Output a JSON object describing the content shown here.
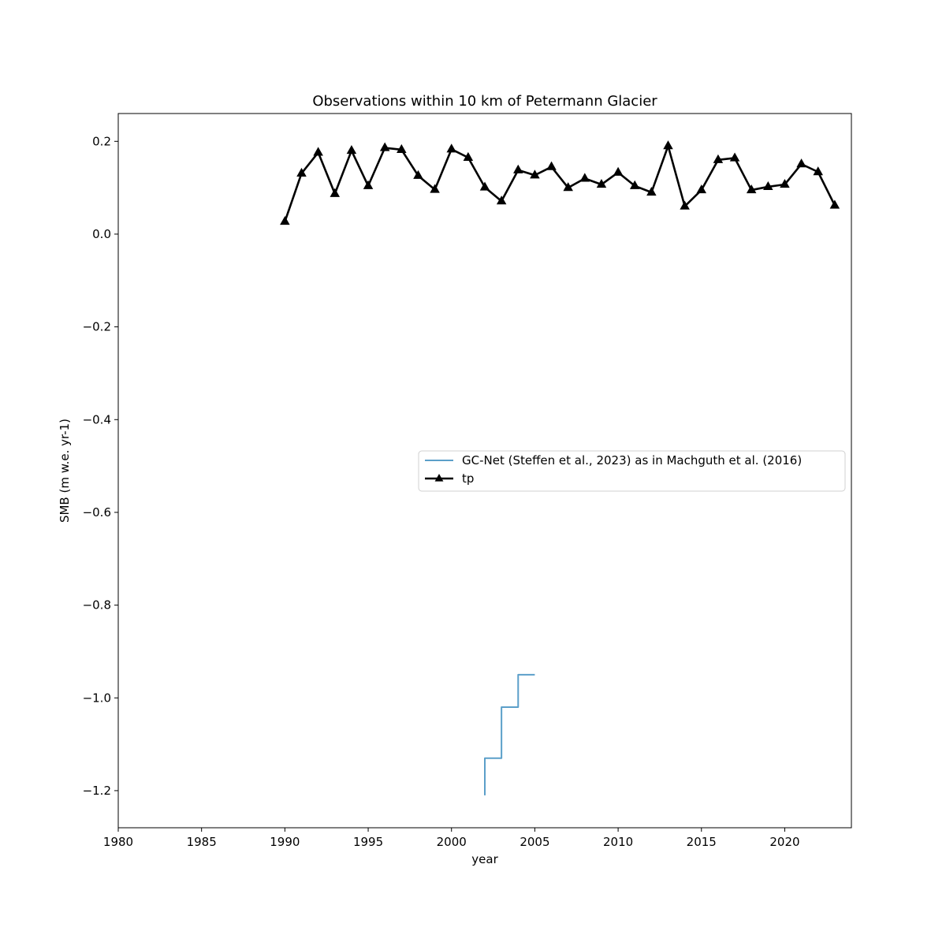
{
  "chart_data": {
    "type": "line",
    "title": "Observations within 10 km of Petermann Glacier",
    "xlabel": "year",
    "ylabel": "SMB (m w.e. yr-1)",
    "xlim": [
      1980,
      2024
    ],
    "ylim": [
      -1.28,
      0.26
    ],
    "xticks": [
      1980,
      1985,
      1990,
      1995,
      2000,
      2005,
      2010,
      2015,
      2020
    ],
    "yticks": [
      0.2,
      0.0,
      -0.2,
      -0.4,
      -0.6,
      -0.8,
      -1.0,
      -1.2
    ],
    "ytick_labels": [
      "0.2",
      "0.0",
      "−0.2",
      "−0.4",
      "−0.6",
      "−0.8",
      "−1.0",
      "−1.2"
    ],
    "grid": false,
    "legend_position": "center-right",
    "series": [
      {
        "name": "GC-Net (Steffen et al., 2023) as in Machguth et al. (2016)",
        "style": "step",
        "color": "#5b9fc9",
        "marker": "none",
        "points": [
          [
            2002,
            -1.21
          ],
          [
            2002,
            -1.13
          ],
          [
            2003,
            -1.13
          ],
          [
            2003,
            -1.02
          ],
          [
            2004,
            -1.02
          ],
          [
            2004,
            -0.95
          ],
          [
            2005,
            -0.95
          ]
        ]
      },
      {
        "name": "tp",
        "style": "line",
        "color": "#000000",
        "marker": "triangle",
        "x": [
          1990,
          1991,
          1992,
          1993,
          1994,
          1995,
          1996,
          1997,
          1998,
          1999,
          2000,
          2001,
          2002,
          2003,
          2004,
          2005,
          2006,
          2007,
          2008,
          2009,
          2010,
          2011,
          2012,
          2013,
          2014,
          2015,
          2016,
          2017,
          2018,
          2019,
          2020,
          2021,
          2022,
          2023
        ],
        "y": [
          0.027,
          0.131,
          0.176,
          0.087,
          0.18,
          0.104,
          0.186,
          0.182,
          0.126,
          0.096,
          0.183,
          0.165,
          0.101,
          0.071,
          0.138,
          0.127,
          0.145,
          0.1,
          0.12,
          0.107,
          0.133,
          0.104,
          0.09,
          0.19,
          0.06,
          0.095,
          0.16,
          0.164,
          0.095,
          0.102,
          0.107,
          0.151,
          0.134,
          0.062
        ]
      }
    ]
  }
}
